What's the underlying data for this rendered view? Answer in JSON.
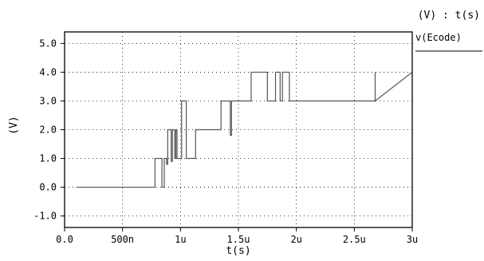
{
  "chart_data": {
    "type": "line",
    "header_label": "(V) : t(s)",
    "xlabel": "t(s)",
    "ylabel": "(V)",
    "xlim": [
      0,
      3e-06
    ],
    "ylim": [
      -1.4,
      5.4
    ],
    "grid": true,
    "legend_placement": "right",
    "x_ticks": [
      {
        "value": 0,
        "label": "0.0"
      },
      {
        "value": 5e-07,
        "label": "500n"
      },
      {
        "value": 1e-06,
        "label": "1u"
      },
      {
        "value": 1.5e-06,
        "label": "1.5u"
      },
      {
        "value": 2e-06,
        "label": "2u"
      },
      {
        "value": 2.5e-06,
        "label": "2.5u"
      },
      {
        "value": 3e-06,
        "label": "3u"
      }
    ],
    "y_ticks": [
      {
        "value": 5,
        "label": "5.0"
      },
      {
        "value": 4,
        "label": "4.0"
      },
      {
        "value": 3,
        "label": "3.0"
      },
      {
        "value": 2,
        "label": "2.0"
      },
      {
        "value": 1,
        "label": "1.0"
      },
      {
        "value": 0,
        "label": "0.0"
      },
      {
        "value": -1,
        "label": "-1.0"
      }
    ],
    "series": [
      {
        "name": "v(Ecode)",
        "color": "#555555",
        "x": [
          1e-07,
          7.8e-07,
          7.8e-07,
          8.4e-07,
          8.4e-07,
          8.6e-07,
          8.6e-07,
          8.8e-07,
          8.8e-07,
          8.9e-07,
          8.9e-07,
          9.2e-07,
          9.2e-07,
          9.3e-07,
          9.3e-07,
          9.5e-07,
          9.5e-07,
          9.6e-07,
          9.6e-07,
          9.7e-07,
          9.7e-07,
          1.01e-06,
          1.01e-06,
          1.02e-06,
          1.02e-06,
          1.05e-06,
          1.05e-06,
          1.13e-06,
          1.13e-06,
          1.2e-06,
          1.2e-06,
          1.35e-06,
          1.35e-06,
          1.43e-06,
          1.43e-06,
          1.44e-06,
          1.44e-06,
          1.49e-06,
          1.49e-06,
          1.5e-06,
          1.5e-06,
          1.61e-06,
          1.61e-06,
          1.75e-06,
          1.75e-06,
          1.82e-06,
          1.82e-06,
          1.86e-06,
          1.86e-06,
          1.88e-06,
          1.88e-06,
          1.94e-06,
          1.94e-06,
          2.68e-06,
          2.68e-06,
          2.68e-06,
          2.68e-06,
          3e-06
        ],
        "values": [
          0,
          0,
          1,
          1,
          0,
          0,
          1,
          1,
          0.8,
          0.8,
          2,
          2,
          0.9,
          0.9,
          2,
          2,
          1,
          1,
          2,
          2,
          1,
          1,
          3,
          3,
          3,
          3,
          1,
          1,
          2,
          2,
          2,
          2,
          3,
          3,
          1.8,
          1.8,
          3,
          3,
          3,
          3,
          3,
          3,
          4,
          4,
          3,
          3,
          4,
          4,
          3,
          3,
          4,
          4,
          3,
          3,
          4,
          4,
          3,
          4
        ]
      }
    ]
  }
}
